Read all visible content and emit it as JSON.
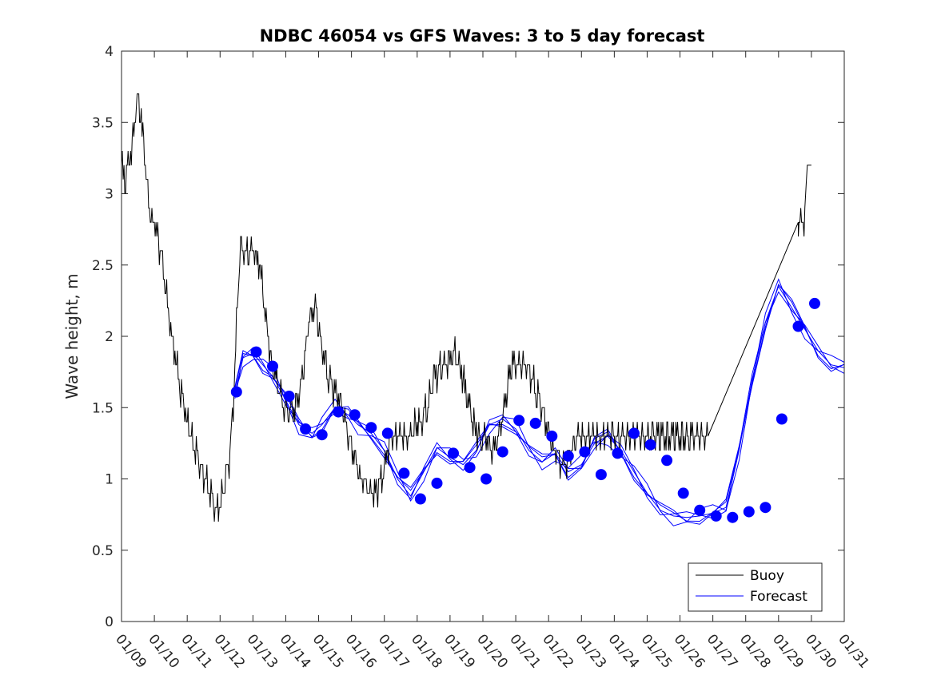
{
  "chart_data": {
    "type": "line",
    "title": "NDBC 46054 vs GFS Waves: 3 to 5 day forecast",
    "xlabel": "",
    "ylabel": "Wave height, m",
    "ylim": [
      0,
      4
    ],
    "xlim_days": [
      0,
      22
    ],
    "yticks": [
      "0",
      "0.5",
      "1",
      "1.5",
      "2",
      "2.5",
      "3",
      "3.5",
      "4"
    ],
    "xticks": [
      "01/09",
      "01/10",
      "01/11",
      "01/12",
      "01/13",
      "01/14",
      "01/15",
      "01/16",
      "01/17",
      "01/18",
      "01/19",
      "01/20",
      "01/21",
      "01/22",
      "01/23",
      "01/24",
      "01/25",
      "01/26",
      "01/27",
      "01/28",
      "01/29",
      "01/30",
      "01/31"
    ],
    "legend": [
      "Buoy",
      "Forecast"
    ],
    "legend_position": "bottom-right",
    "colors": {
      "buoy": "#000000",
      "forecast": "#0000ff"
    },
    "buoy": {
      "name": "Buoy",
      "x": [
        0.0,
        0.1,
        0.2,
        0.3,
        0.4,
        0.5,
        0.6,
        0.7,
        0.8,
        0.9,
        1.0,
        1.2,
        1.4,
        1.6,
        1.8,
        2.0,
        2.2,
        2.4,
        2.6,
        2.75,
        2.9,
        3.1,
        3.25,
        3.4,
        3.6,
        3.8,
        4.0,
        4.2,
        4.3,
        4.5,
        4.7,
        4.9,
        5.1,
        5.3,
        5.5,
        5.7,
        5.9,
        6.1,
        6.3,
        6.5,
        6.7,
        6.9,
        7.1,
        7.3,
        7.5,
        7.7,
        7.9,
        8.1,
        8.3,
        8.5,
        8.7,
        8.9,
        9.1,
        9.3,
        9.5,
        9.7,
        9.9,
        10.1,
        10.3,
        10.5,
        10.7,
        10.9,
        11.1,
        11.3,
        11.5,
        11.7,
        11.9,
        12.1,
        12.3,
        12.5,
        12.7,
        12.9,
        13.1,
        13.3,
        13.5,
        13.7,
        13.9,
        14.1,
        14.3,
        14.5,
        14.7,
        14.9,
        15.1,
        15.3,
        15.5,
        15.7,
        15.9,
        16.1,
        16.3,
        16.5,
        16.7,
        16.9,
        17.1,
        17.3,
        17.5,
        17.7,
        17.85,
        20.6,
        20.8,
        20.9,
        21.0
      ],
      "values": [
        3.2,
        3.1,
        3.2,
        3.3,
        3.5,
        3.7,
        3.5,
        3.3,
        3.0,
        2.8,
        2.8,
        2.6,
        2.2,
        1.9,
        1.6,
        1.4,
        1.25,
        1.1,
        0.95,
        0.85,
        0.75,
        0.9,
        1.1,
        1.5,
        2.6,
        2.6,
        2.6,
        2.5,
        2.3,
        1.9,
        1.7,
        1.55,
        1.45,
        1.5,
        1.7,
        2.1,
        2.2,
        1.9,
        1.7,
        1.6,
        1.5,
        1.3,
        1.15,
        1.0,
        0.95,
        0.9,
        1.0,
        1.2,
        1.3,
        1.3,
        1.3,
        1.35,
        1.4,
        1.5,
        1.7,
        1.8,
        1.8,
        1.9,
        1.8,
        1.6,
        1.4,
        1.3,
        1.25,
        1.2,
        1.3,
        1.6,
        1.8,
        1.8,
        1.8,
        1.7,
        1.55,
        1.4,
        1.25,
        1.15,
        1.1,
        1.2,
        1.3,
        1.3,
        1.3,
        1.3,
        1.3,
        1.3,
        1.3,
        1.3,
        1.3,
        1.3,
        1.3,
        1.3,
        1.3,
        1.3,
        1.3,
        1.3,
        1.3,
        1.3,
        1.3,
        1.3,
        1.3,
        2.8,
        2.8,
        3.3,
        3.1
      ]
    },
    "forecast": {
      "name": "Forecast",
      "x": [
        3.45,
        3.7,
        4.0,
        4.3,
        4.6,
        5.0,
        5.4,
        5.8,
        6.1,
        6.5,
        6.9,
        7.2,
        7.6,
        8.0,
        8.4,
        8.8,
        9.2,
        9.6,
        10.0,
        10.4,
        10.8,
        11.2,
        11.6,
        12.0,
        12.4,
        12.8,
        13.2,
        13.6,
        14.0,
        14.4,
        14.8,
        15.2,
        15.6,
        16.0,
        16.4,
        16.8,
        17.2,
        17.6,
        18.0,
        18.4,
        18.8,
        19.2,
        19.6,
        20.0,
        20.4,
        20.8,
        21.2,
        21.6,
        22.0
      ],
      "values": [
        1.6,
        1.85,
        1.88,
        1.8,
        1.72,
        1.55,
        1.38,
        1.32,
        1.38,
        1.5,
        1.45,
        1.38,
        1.32,
        1.2,
        1.0,
        0.88,
        1.05,
        1.22,
        1.15,
        1.1,
        1.2,
        1.38,
        1.42,
        1.35,
        1.2,
        1.12,
        1.18,
        1.05,
        1.1,
        1.25,
        1.3,
        1.2,
        1.05,
        0.9,
        0.78,
        0.74,
        0.73,
        0.74,
        0.76,
        0.8,
        1.2,
        1.7,
        2.1,
        2.35,
        2.2,
        2.05,
        1.9,
        1.8,
        1.78
      ],
      "marker_x": [
        3.5,
        4.1,
        4.6,
        5.1,
        5.6,
        6.1,
        6.6,
        7.1,
        7.6,
        8.1,
        8.6,
        9.1,
        9.6,
        10.1,
        10.6,
        11.1,
        11.6,
        12.1,
        12.6,
        13.1,
        13.6,
        14.1,
        14.6,
        15.1,
        15.6,
        16.1,
        16.6,
        17.1,
        17.6,
        18.1,
        18.6,
        19.1,
        19.6,
        20.1,
        20.6,
        21.1
      ],
      "marker_values": [
        1.61,
        1.89,
        1.79,
        1.58,
        1.35,
        1.31,
        1.47,
        1.45,
        1.36,
        1.32,
        1.04,
        0.86,
        0.97,
        1.18,
        1.08,
        1.0,
        1.19,
        1.41,
        1.39,
        1.3,
        1.16,
        1.19,
        1.03,
        1.18,
        1.32,
        1.24,
        1.13,
        0.9,
        0.78,
        0.74,
        0.73,
        0.77,
        0.8,
        1.42,
        2.07,
        2.23
      ]
    }
  }
}
